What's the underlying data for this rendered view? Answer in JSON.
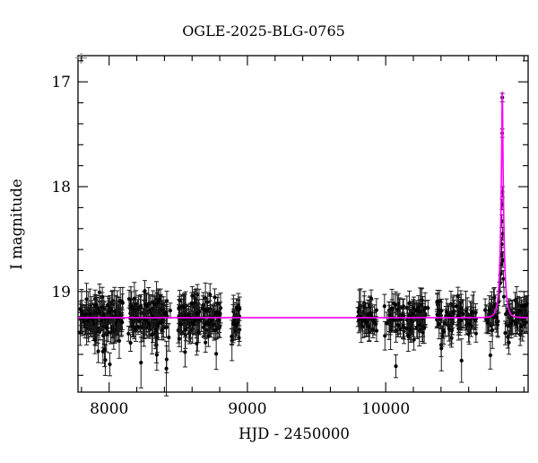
{
  "figure": {
    "background": "#ffffff",
    "title": "OGLE-2025-BLG-0765"
  },
  "chart_data": {
    "type": "scatter",
    "title": "OGLE-2025-BLG-0765",
    "xlabel": "HJD - 2450000",
    "ylabel": "I magnitude",
    "xlim": [
      7775,
      11030
    ],
    "ylim": [
      19.96,
      16.75
    ],
    "y_axis_inverted": true,
    "grid": false,
    "legend": null,
    "x_ticks_major": [
      8000,
      9000,
      10000
    ],
    "x_tick_labels": [
      "8000",
      "9000",
      "10000"
    ],
    "x_tick_minor_step": 200,
    "y_ticks_major": [
      17,
      18,
      19
    ],
    "y_tick_labels": [
      "17",
      "18",
      "19"
    ],
    "y_tick_minor_step": 0.2,
    "point_color": "#000000",
    "errorbar_color": "#1a1a1a",
    "model_color": "#ff00ff",
    "baseline_mag": 19.25,
    "model": {
      "kind": "point-source-point-lens",
      "t0": 10843.2,
      "tE": 25,
      "u0": 0.139,
      "I0": 19.25,
      "peak_mag": 17.1
    },
    "observing_seasons": [
      {
        "hjd_start": 7790,
        "hjd_end": 8100,
        "n_points": 150
      },
      {
        "hjd_start": 8140,
        "hjd_end": 8445,
        "n_points": 125
      },
      {
        "hjd_start": 8500,
        "hjd_end": 8808,
        "n_points": 125
      },
      {
        "hjd_start": 8884,
        "hjd_end": 8948,
        "n_points": 26
      },
      {
        "hjd_start": 9795,
        "hjd_end": 9935,
        "n_points": 42
      },
      {
        "hjd_start": 9990,
        "hjd_end": 10310,
        "n_points": 95
      },
      {
        "hjd_start": 10365,
        "hjd_end": 10660,
        "n_points": 80
      },
      {
        "hjd_start": 10715,
        "hjd_end": 11025,
        "n_points": 90,
        "skip_window": [
          10812,
          10857
        ]
      }
    ],
    "noise": {
      "mag_sigma": 0.085,
      "mag_clip_bright": -0.3,
      "mag_clip_faint": 0.33,
      "err_base": 0.07,
      "err_spread": 0.05,
      "err_min": 0.055,
      "err_max": 0.26,
      "outlier_fraction": 0.035,
      "seed": 7
    },
    "peak_points": [
      {
        "t": 10816.0,
        "mag": 19.1,
        "err": 0.1
      },
      {
        "t": 10822.0,
        "mag": 19.0,
        "err": 0.09
      },
      {
        "t": 10828.0,
        "mag": 18.92,
        "err": 0.08
      },
      {
        "t": 10833.0,
        "mag": 18.83,
        "err": 0.08
      },
      {
        "t": 10836.0,
        "mag": 18.74,
        "err": 0.07
      },
      {
        "t": 10838.0,
        "mag": 18.65,
        "err": 0.07
      },
      {
        "t": 10839.5,
        "mag": 18.55,
        "err": 0.07
      },
      {
        "t": 10840.5,
        "mag": 18.33,
        "err": 0.06
      },
      {
        "t": 10841.5,
        "mag": 18.17,
        "err": 0.05
      },
      {
        "t": 10842.6,
        "mag": 17.49,
        "err": 0.04
      },
      {
        "t": 10843.3,
        "mag": 17.15,
        "err": 0.04
      },
      {
        "t": 10844.5,
        "mag": 18.05,
        "err": 0.05
      },
      {
        "t": 10846.0,
        "mag": 18.45,
        "err": 0.06
      },
      {
        "t": 10848.0,
        "mag": 18.7,
        "err": 0.07
      },
      {
        "t": 10851.0,
        "mag": 18.88,
        "err": 0.08
      },
      {
        "t": 10855.0,
        "mag": 19.05,
        "err": 0.09
      }
    ]
  }
}
